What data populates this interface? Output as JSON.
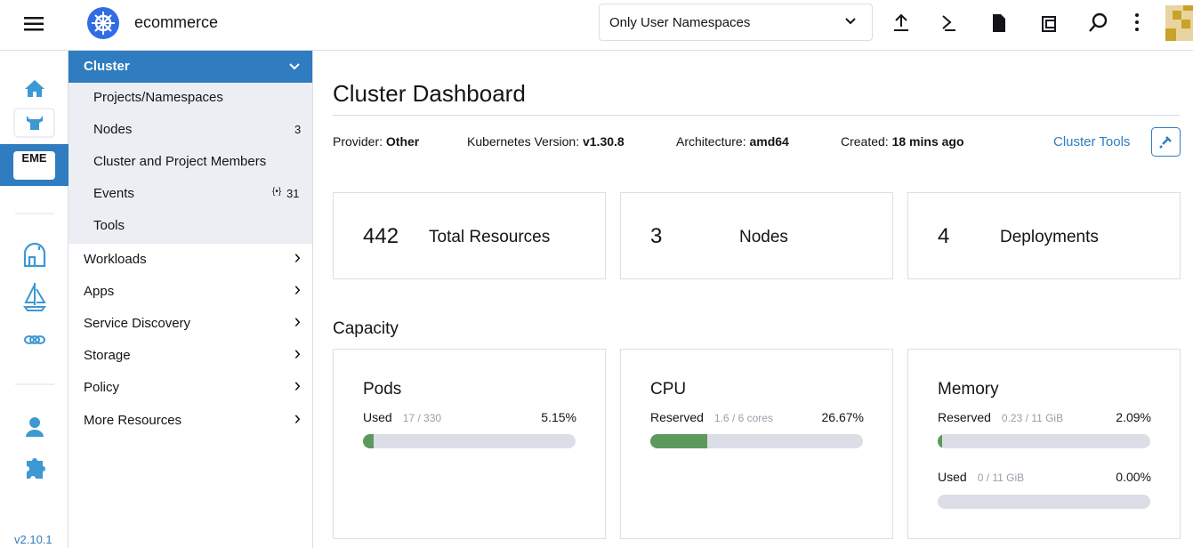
{
  "header": {
    "cluster_name": "ecommerce",
    "namespace_filter": "Only User Namespaces"
  },
  "rail": {
    "cluster_badge": "EME",
    "version": "v2.10.1"
  },
  "nav": {
    "section": "Cluster",
    "items": [
      {
        "label": "Projects/Namespaces"
      },
      {
        "label": "Nodes",
        "count": 3
      },
      {
        "label": "Cluster and Project Members"
      },
      {
        "label": "Events",
        "count": 31
      },
      {
        "label": "Tools"
      }
    ],
    "groups": [
      "Workloads",
      "Apps",
      "Service Discovery",
      "Storage",
      "Policy",
      "More Resources"
    ]
  },
  "page": {
    "title": "Cluster Dashboard",
    "facts": [
      {
        "label": "Provider:",
        "value": "Other"
      },
      {
        "label": "Kubernetes Version:",
        "value": "v1.30.8"
      },
      {
        "label": "Architecture:",
        "value": "amd64"
      },
      {
        "label": "Created:",
        "value": "18 mins ago"
      }
    ],
    "cluster_tools": "Cluster Tools"
  },
  "stats": [
    {
      "value": 442,
      "label": "Total Resources"
    },
    {
      "value": 3,
      "label": "Nodes"
    },
    {
      "value": 4,
      "label": "Deployments"
    }
  ],
  "capacity": {
    "title": "Capacity",
    "cards": [
      {
        "title": "Pods",
        "meters": [
          {
            "label": "Used",
            "detail": "17 / 330",
            "value": 5.15,
            "value_label": "5.15%"
          }
        ]
      },
      {
        "title": "CPU",
        "meters": [
          {
            "label": "Reserved",
            "detail": "1.6 / 6 cores",
            "value": 26.67,
            "value_label": "26.67%"
          }
        ]
      },
      {
        "title": "Memory",
        "meters": [
          {
            "label": "Reserved",
            "detail": "0.23 / 11 GiB",
            "value": 2.09,
            "value_label": "2.09%"
          },
          {
            "label": "Used",
            "detail": "0 / 11 GiB",
            "value": 0,
            "value_label": "0.00%"
          }
        ]
      }
    ]
  }
}
